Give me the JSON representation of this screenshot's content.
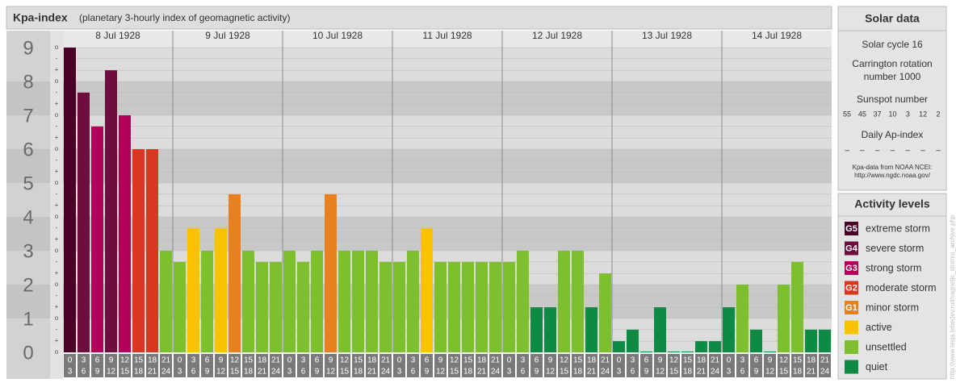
{
  "chart_data": {
    "type": "bar",
    "title": "Kpa-index",
    "subtitle": "(planetary 3-hourly index of geomagnetic activity)",
    "days": [
      "8 Jul 1928",
      "9 Jul 1928",
      "10 Jul 1928",
      "11 Jul 1928",
      "12 Jul 1928",
      "13 Jul 1928",
      "14 Jul 1928"
    ],
    "hour_slots": [
      {
        "start": "0",
        "end": "3"
      },
      {
        "start": "3",
        "end": "6"
      },
      {
        "start": "6",
        "end": "9"
      },
      {
        "start": "9",
        "end": "12"
      },
      {
        "start": "12",
        "end": "15"
      },
      {
        "start": "15",
        "end": "18"
      },
      {
        "start": "18",
        "end": "21"
      },
      {
        "start": "21",
        "end": "24"
      }
    ],
    "values": [
      9,
      7.67,
      6.67,
      8.33,
      7,
      6,
      6,
      3,
      2.67,
      3.67,
      3,
      3.67,
      4.67,
      3,
      2.67,
      2.67,
      3,
      2.67,
      3,
      4.67,
      3,
      3,
      3,
      2.67,
      2.67,
      3,
      3.67,
      2.67,
      2.67,
      2.67,
      2.67,
      2.67,
      2.67,
      3,
      1.33,
      1.33,
      3,
      3,
      1.33,
      2.33,
      0.33,
      0.67,
      0,
      1.33,
      0,
      0,
      0.33,
      0.33,
      1.33,
      2,
      0.67,
      0,
      2,
      2.67,
      0.67,
      0.67
    ],
    "colors": [
      "#4a0027",
      "#6e0e3f",
      "#b0005a",
      "#6e0e3f",
      "#b0005a",
      "#d8381f",
      "#d8381f",
      "#7dbf2c",
      "#7dbf2c",
      "#f7c300",
      "#7dbf2c",
      "#f7c300",
      "#e9801f",
      "#7dbf2c",
      "#7dbf2c",
      "#7dbf2c",
      "#7dbf2c",
      "#7dbf2c",
      "#7dbf2c",
      "#e9801f",
      "#7dbf2c",
      "#7dbf2c",
      "#7dbf2c",
      "#7dbf2c",
      "#7dbf2c",
      "#7dbf2c",
      "#f7c300",
      "#7dbf2c",
      "#7dbf2c",
      "#7dbf2c",
      "#7dbf2c",
      "#7dbf2c",
      "#7dbf2c",
      "#7dbf2c",
      "#0e8a45",
      "#0e8a45",
      "#7dbf2c",
      "#7dbf2c",
      "#0e8a45",
      "#7dbf2c",
      "#0e8a45",
      "#0e8a45",
      "#0e8a45",
      "#0e8a45",
      "#0e8a45",
      "#0e8a45",
      "#0e8a45",
      "#0e8a45",
      "#0e8a45",
      "#7dbf2c",
      "#0e8a45",
      "#0e8a45",
      "#7dbf2c",
      "#7dbf2c",
      "#0e8a45",
      "#0e8a45"
    ],
    "ylim": [
      0,
      9
    ],
    "yticks": [
      0,
      1,
      2,
      3,
      4,
      5,
      6,
      7,
      8,
      9
    ],
    "minor_ticks": [
      {
        "value": 0,
        "label": "o"
      },
      {
        "value": 0.33,
        "label": "+"
      },
      {
        "value": 0.67,
        "label": "-"
      },
      {
        "value": 1,
        "label": "o"
      },
      {
        "value": 1.33,
        "label": "+"
      },
      {
        "value": 1.67,
        "label": "-"
      },
      {
        "value": 2,
        "label": "o"
      },
      {
        "value": 2.33,
        "label": "+"
      },
      {
        "value": 2.67,
        "label": "-"
      },
      {
        "value": 3,
        "label": "o"
      },
      {
        "value": 3.33,
        "label": "+"
      },
      {
        "value": 3.67,
        "label": "-"
      },
      {
        "value": 4,
        "label": "o"
      },
      {
        "value": 4.33,
        "label": "+"
      },
      {
        "value": 4.67,
        "label": "-"
      },
      {
        "value": 5,
        "label": "o"
      },
      {
        "value": 5.33,
        "label": "+"
      },
      {
        "value": 5.67,
        "label": "-"
      },
      {
        "value": 6,
        "label": "o"
      },
      {
        "value": 6.33,
        "label": "+"
      },
      {
        "value": 6.67,
        "label": "-"
      },
      {
        "value": 7,
        "label": "o"
      },
      {
        "value": 7.33,
        "label": "+"
      },
      {
        "value": 7.67,
        "label": "-"
      },
      {
        "value": 8,
        "label": "o"
      },
      {
        "value": 8.33,
        "label": "+"
      },
      {
        "value": 8.67,
        "label": "-"
      },
      {
        "value": 9,
        "label": "o"
      }
    ],
    "solar": {
      "title": "Solar data",
      "cycle": "Solar cycle 16",
      "carrington": [
        "Carrington rotation",
        "number 1000"
      ],
      "sunspot_title": "Sunspot number",
      "sunspots": [
        55,
        45,
        37,
        10,
        3,
        12,
        2
      ],
      "ap_title": "Daily Ap-index",
      "ap": [
        "–",
        "–",
        "–",
        "–",
        "–",
        "–",
        "–"
      ],
      "source": [
        "Kpa-data from NOAA NCEI:",
        "http://www.ngdc.noaa.gov/"
      ]
    },
    "legend": {
      "title": "Activity levels",
      "items": [
        {
          "badge": "G5",
          "label": "extreme storm",
          "color": "#4a0027"
        },
        {
          "badge": "G4",
          "label": "severe storm",
          "color": "#6e0e3f"
        },
        {
          "badge": "G3",
          "label": "strong storm",
          "color": "#b0005a"
        },
        {
          "badge": "G2",
          "label": "moderate storm",
          "color": "#d8381f"
        },
        {
          "badge": "G1",
          "label": "minor storm",
          "color": "#e9801f"
        },
        {
          "label": "active",
          "color": "#f7c300"
        },
        {
          "label": "unsettled",
          "color": "#7dbf2c"
        },
        {
          "label": "quiet",
          "color": "#0e8a45"
        }
      ]
    },
    "watermark": "http://www.tesis.lebedev.ru/magnetic_storms_archive.php"
  }
}
